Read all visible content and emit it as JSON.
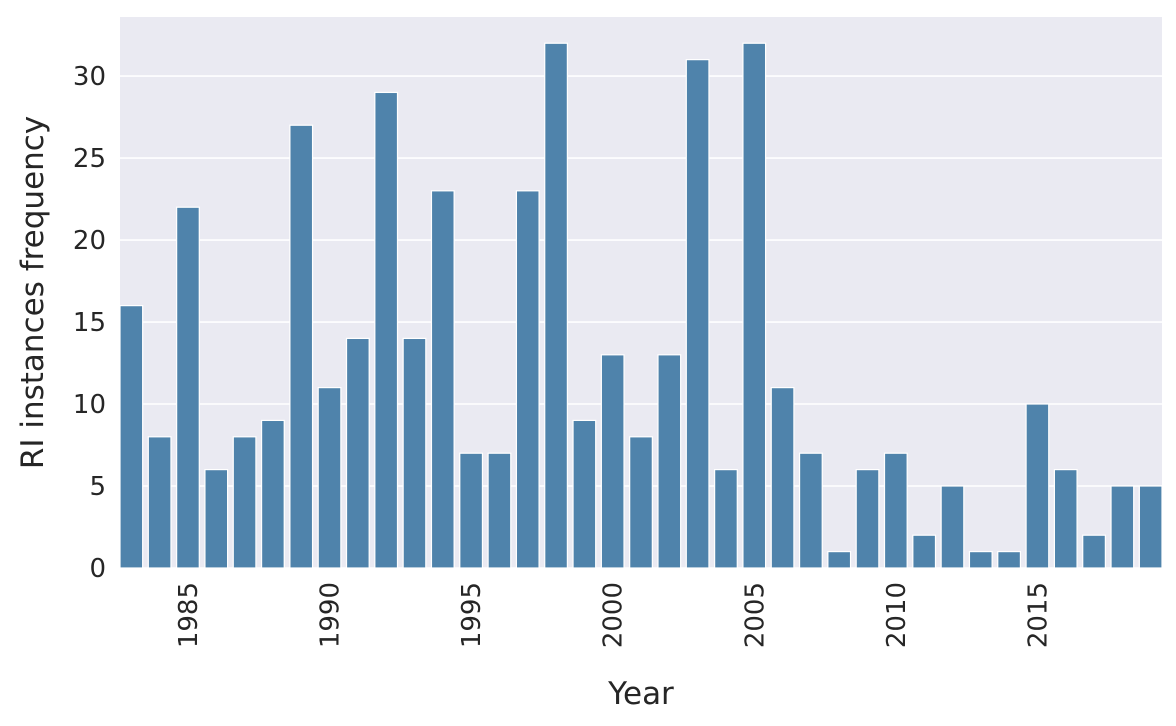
{
  "chart_data": {
    "type": "bar",
    "title": "",
    "xlabel": "Year",
    "ylabel": "RI instances frequency",
    "ylim": [
      0,
      33.6
    ],
    "yticks": [
      0,
      5,
      10,
      15,
      20,
      25,
      30
    ],
    "xtick_labels": [
      "1985",
      "1990",
      "1995",
      "2000",
      "2005",
      "2010",
      "2015"
    ],
    "grid": true,
    "legend": "none",
    "colors": {
      "bar": "#4f83ab",
      "plot_background": "#eaeaf2",
      "gridline": "#ffffff",
      "text": "#262626"
    },
    "categories": [
      1983,
      1984,
      1985,
      1986,
      1987,
      1988,
      1989,
      1990,
      1991,
      1992,
      1993,
      1994,
      1995,
      1996,
      1997,
      1998,
      1999,
      2000,
      2001,
      2002,
      2003,
      2004,
      2005,
      2006,
      2007,
      2008,
      2009,
      2010,
      2011,
      2012,
      2013,
      2014,
      2015,
      2016,
      2017,
      2018,
      2019
    ],
    "values": [
      16,
      8,
      22,
      6,
      8,
      9,
      27,
      11,
      14,
      29,
      14,
      23,
      7,
      7,
      23,
      32,
      9,
      13,
      8,
      13,
      31,
      6,
      32,
      11,
      7,
      1,
      6,
      7,
      2,
      5,
      1,
      1,
      10,
      6,
      2,
      5,
      5
    ]
  }
}
